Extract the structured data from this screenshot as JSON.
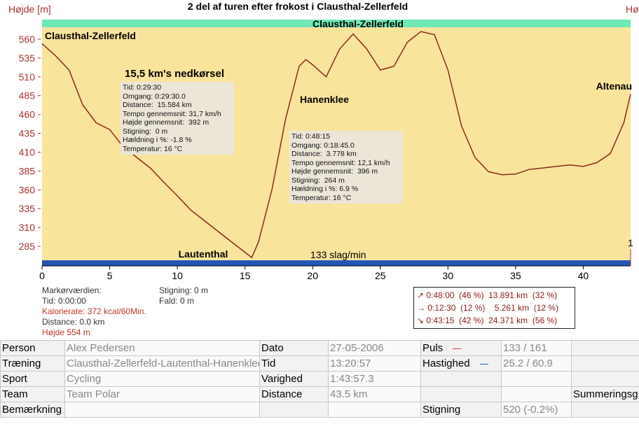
{
  "chart_data": {
    "type": "line",
    "title": "2 del af turen efter frokost i Clausthal-Zellerfeld",
    "y_label": "Højde [m]",
    "y2_label": "Hø",
    "color": "#8b2a1e",
    "x": [
      0,
      1,
      2,
      3,
      4,
      5,
      6,
      7,
      8,
      9,
      10,
      11,
      12,
      13,
      14,
      15,
      15.5,
      16,
      17,
      18,
      19,
      19.5,
      20,
      21,
      22,
      23,
      24,
      25,
      26,
      27,
      28,
      29,
      30,
      31,
      32,
      33,
      34,
      35,
      36,
      37,
      38,
      39,
      40,
      41,
      42,
      43,
      43.5
    ],
    "values": [
      554,
      538,
      519,
      473,
      449,
      440,
      417,
      403,
      389,
      370,
      352,
      333,
      319,
      305,
      291,
      277,
      270,
      291,
      361,
      454,
      524,
      533,
      526,
      510,
      547,
      567,
      547,
      519,
      524,
      556,
      570,
      566,
      519,
      445,
      403,
      384,
      380,
      381,
      387,
      389,
      391,
      393,
      391,
      396,
      408,
      449,
      487
    ],
    "xlim": [
      0,
      43.5
    ],
    "xticks": [
      0,
      5,
      10,
      15,
      20,
      25,
      30,
      35,
      40
    ],
    "ylim": [
      259,
      586
    ],
    "yticks": [
      285,
      310,
      335,
      360,
      385,
      410,
      435,
      460,
      485,
      510,
      535,
      560
    ],
    "places": [
      "Clausthal-Zellerfeld",
      "Clausthal-Zellerfeld",
      "Hanenklee",
      "Altenau",
      "Lautenthal"
    ],
    "pulse_label": "133 slag/min",
    "marker_label": "1",
    "boxes": [
      {
        "heading": "15,5 km's nedkørsel",
        "lines": [
          "Tid: 0:29:30",
          "Omgang: 0:29:30.0",
          "Distance:  15.584 km",
          "Tempo gennemsnit: 31,7 km/h",
          "Højde gennemsnit:  392 m",
          "Stigning:  0 m",
          "Hældning i %: -1.8 %",
          "Temperatur: 16 °C"
        ]
      },
      {
        "lines": [
          "Tid: 0:48:15",
          "Omgang: 0:18:45.0",
          "Distance:  3.778 km",
          "Tempo gennemsnit: 12,1 km/h",
          "Højde gennemsnit:  396 m",
          "Stigning:  264 m",
          "Hældning i %: 6.9 %",
          "Temperatur: 16 °C"
        ]
      }
    ]
  },
  "marker": {
    "left": [
      "Markørværdien:",
      "Tid: 0:00:00",
      "Kalorierate: 372 kcal/60Min.",
      "Distance: 0.0 km",
      "Højde 554 m"
    ],
    "middle": [
      "Stigning: 0 m",
      "Fald: 0 m"
    ]
  },
  "summary": [
    "↗ 0:48:00  (46 %)  13.891 km  (32 %)",
    "→ 0:12:30  (12 %)    5.261 km  (12 %)",
    "↘ 0:43:15  (42 %)  24.371 km  (56 %)"
  ],
  "table": {
    "rows": [
      [
        "Person",
        "Alex Pedersen",
        "Dato",
        "27-05-2006",
        "Puls",
        "133 / 161",
        null
      ],
      [
        "Træning",
        "Clausthal-Zellerfeld-Lautenthal-Hanenklee",
        "Tid",
        "13:20:57",
        "Hastighed",
        "25.2 / 60.9",
        null
      ],
      [
        "Sport",
        "Cycling",
        "Varighed",
        "1:43:57.3",
        null,
        null,
        null
      ],
      [
        "Team",
        "Team Polar",
        "Distance",
        "43.5 km",
        null,
        null,
        "Summeringsg"
      ],
      [
        "Bemærkning",
        null,
        null,
        null,
        "Stigning",
        "520 (-0.2%)",
        null
      ]
    ]
  }
}
